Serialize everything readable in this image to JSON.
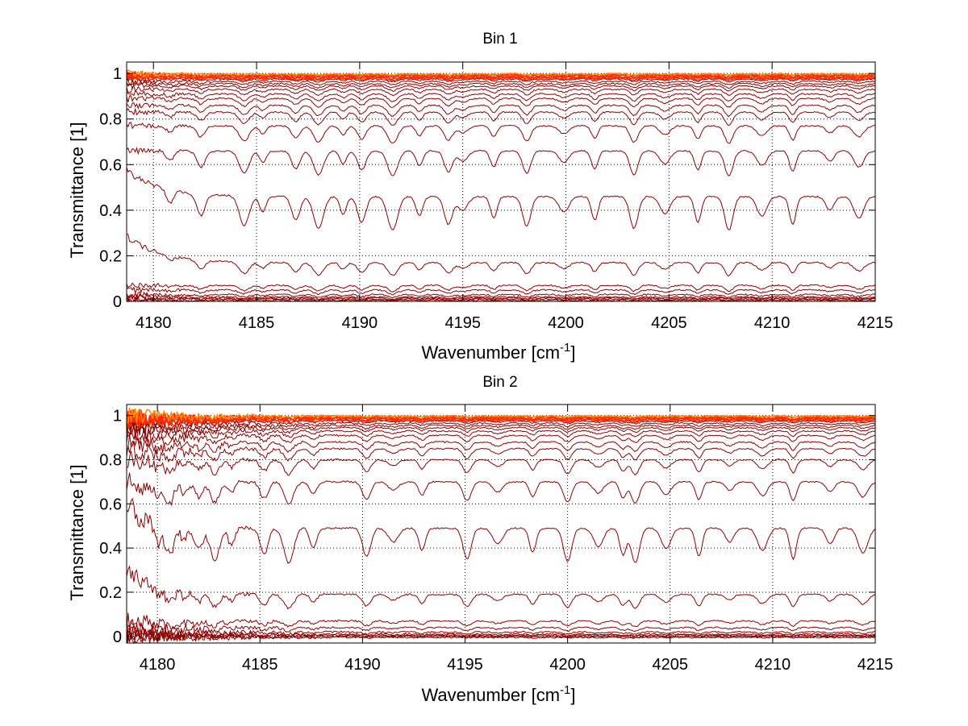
{
  "chart_data": [
    {
      "type": "line",
      "title": "Bin 1",
      "xlabel": "Wavenumber [cm",
      "xlabel_sup": "-1",
      "xlabel_tail": "]",
      "ylabel": "Transmittance [1]",
      "xlim": [
        4178.7,
        4215
      ],
      "ylim": [
        0,
        1.05
      ],
      "xticks": [
        4180,
        4185,
        4190,
        4195,
        4200,
        4205,
        4210,
        4215
      ],
      "xtick_labels": [
        "4180",
        "4185",
        "4190",
        "4195",
        "4200",
        "4205",
        "4210",
        "4215"
      ],
      "yticks": [
        0,
        0.2,
        0.4,
        0.6,
        0.8,
        1
      ],
      "ytick_labels": [
        "0",
        "0.2",
        "0.4",
        "0.6",
        "0.8",
        "1"
      ],
      "grid": true,
      "line_colors": [
        "#8b0000",
        "#ff2a00",
        "#ff8c00",
        "#ffd000",
        "#33cc33",
        "#1e90ff"
      ],
      "absorption_lines_x": [
        4180.8,
        4182.3,
        4184.4,
        4185.3,
        4186.9,
        4188.0,
        4189.2,
        4190.1,
        4191.6,
        4192.9,
        4194.3,
        4195.0,
        4196.5,
        4198.1,
        4199.9,
        4201.4,
        4203.3,
        4204.8,
        4206.4,
        4207.9,
        4209.5,
        4211.0,
        4212.8,
        4214.2
      ],
      "series_baselines": [
        0.005,
        0.01,
        0.015,
        0.02,
        0.03,
        0.05,
        0.07,
        0.17,
        0.46,
        0.66,
        0.77,
        0.83,
        0.86,
        0.89,
        0.91,
        0.93,
        0.945,
        0.955,
        0.965,
        0.975,
        0.98,
        0.985,
        0.99,
        0.995,
        0.998
      ]
    },
    {
      "type": "line",
      "title": "Bin 2",
      "xlabel": "Wavenumber [cm",
      "xlabel_sup": "-1",
      "xlabel_tail": "]",
      "ylabel": "Transmittance [1]",
      "xlim": [
        4178.5,
        4215
      ],
      "ylim": [
        -0.03,
        1.05
      ],
      "xticks": [
        4180,
        4185,
        4190,
        4195,
        4200,
        4205,
        4210,
        4215
      ],
      "xtick_labels": [
        "4180",
        "4185",
        "4190",
        "4195",
        "4200",
        "4205",
        "4210",
        "4215"
      ],
      "yticks": [
        0,
        0.2,
        0.4,
        0.6,
        0.8,
        1
      ],
      "ytick_labels": [
        "0",
        "0.2",
        "0.4",
        "0.6",
        "0.8",
        "1"
      ],
      "grid": true,
      "line_colors": [
        "#8b0000",
        "#ff2a00",
        "#ff8c00",
        "#ffd000",
        "#33cc33",
        "#1e90ff"
      ],
      "absorption_lines_x": [
        4179.2,
        4180.0,
        4180.6,
        4181.3,
        4182.0,
        4182.8,
        4183.6,
        4185.2,
        4186.4,
        4187.6,
        4190.2,
        4191.5,
        4192.9,
        4195.1,
        4196.6,
        4198.3,
        4200.0,
        4201.5,
        4202.7,
        4203.3,
        4204.8,
        4206.4,
        4207.9,
        4209.5,
        4211.0,
        4212.8,
        4214.4
      ],
      "series_baselines": [
        -0.005,
        0.0,
        0.005,
        0.01,
        0.02,
        0.04,
        0.07,
        0.19,
        0.49,
        0.7,
        0.8,
        0.85,
        0.88,
        0.91,
        0.93,
        0.945,
        0.955,
        0.965,
        0.975,
        0.98,
        0.985,
        0.99,
        0.995,
        0.998
      ]
    }
  ]
}
